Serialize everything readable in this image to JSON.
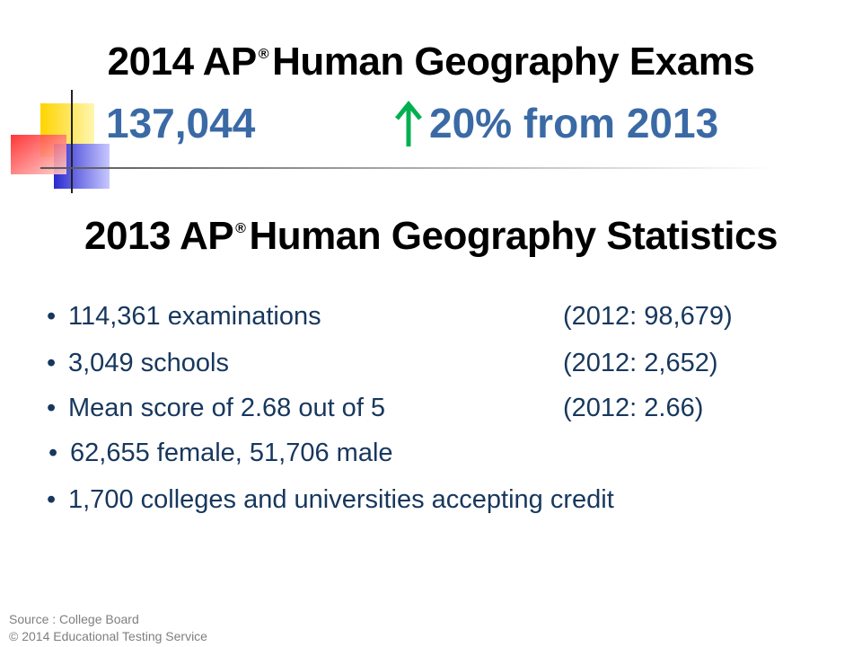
{
  "title": {
    "prefix": "2014 AP",
    "mark": "®",
    "suffix": "Human Geography Exams"
  },
  "headline": {
    "count": "137,044",
    "change": "20% from 2013"
  },
  "subtitle": {
    "prefix": "2013 AP",
    "mark": "®",
    "suffix": "Human Geography Statistics"
  },
  "bullets": [
    {
      "text": "114,361 examinations",
      "note": "(2012: 98,679)"
    },
    {
      "text": "3,049 schools",
      "note": "(2012: 2,652)"
    },
    {
      "text": "Mean score of 2.68 out of 5",
      "note": "(2012: 2.66)"
    },
    {
      "text": "62,655 female, 51,706 male"
    },
    {
      "text": "1,700 colleges and universities accepting credit"
    }
  ],
  "source": [
    "Source : College Board",
    "© 2014 Educational Testing Service"
  ]
}
